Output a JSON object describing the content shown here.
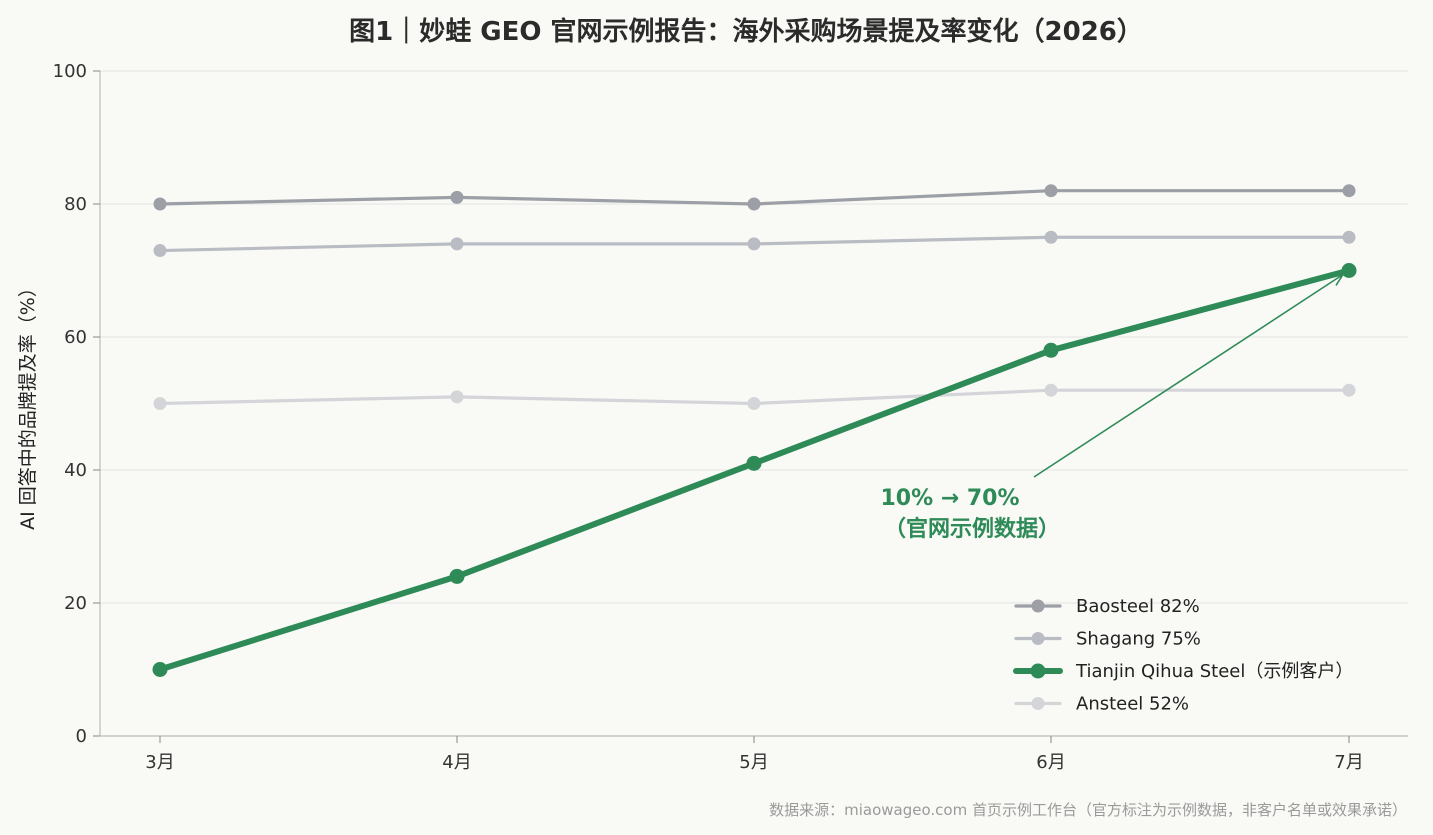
{
  "chart_data": {
    "type": "line",
    "title": "图1｜妙蛙 GEO 官网示例报告：海外采购场景提及率变化（2026）",
    "xlabel": "",
    "ylabel": "AI 回答中的品牌提及率（%）",
    "categories": [
      "3月",
      "4月",
      "5月",
      "6月",
      "7月"
    ],
    "ylim": [
      0,
      100
    ],
    "yticks": [
      0,
      20,
      40,
      60,
      80,
      100
    ],
    "grid": "horizontal",
    "legend_position": "lower-right",
    "series": [
      {
        "name": "Baosteel 82%",
        "values": [
          80,
          81,
          80,
          82,
          82
        ],
        "color": "#9c9fa6",
        "highlight": false
      },
      {
        "name": "Shagang 75%",
        "values": [
          73,
          74,
          74,
          75,
          75
        ],
        "color": "#b9bcc3",
        "highlight": false
      },
      {
        "name": "Tianjin Qihua Steel（示例客户）",
        "values": [
          10,
          24,
          41,
          58,
          70
        ],
        "color": "#2e8a57",
        "highlight": true
      },
      {
        "name": "Ansteel 52%",
        "values": [
          50,
          51,
          50,
          52,
          52
        ],
        "color": "#d3d5d9",
        "highlight": false
      }
    ],
    "annotation": {
      "text_line1": "10% → 70%",
      "text_line2": "（官网示例数据）",
      "point_category": "7月",
      "point_value": 70,
      "color": "#2e8a57"
    },
    "source": "数据来源：miaowageo.com 首页示例工作台（官方标注为示例数据，非客户名单或效果承诺）"
  }
}
